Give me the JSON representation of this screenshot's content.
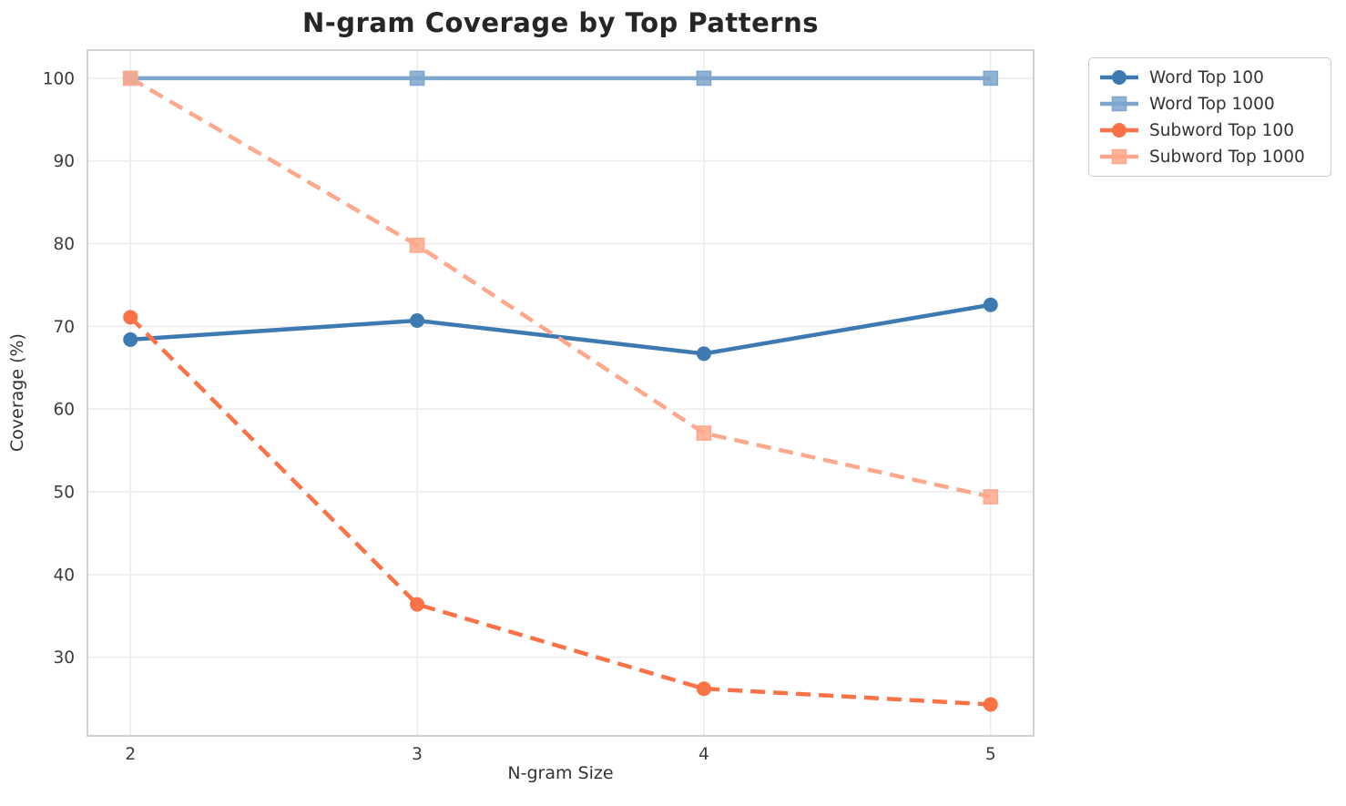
{
  "title": "N-gram Coverage by Top Patterns",
  "colors": {
    "word_top_100": "#3d7ab1",
    "word_top_1000": "#7ea6cc",
    "subword_top_100": "#fb7246",
    "subword_top_1000": "#fda88b",
    "gridline": "#ececec",
    "spine": "#cccccc",
    "title_text": "#262626",
    "tick_text": "#3c3c3c",
    "label_text": "#333333"
  },
  "chart_data": {
    "type": "line",
    "title": "N-gram Coverage by Top Patterns",
    "xlabel": "N-gram Size",
    "ylabel": "Coverage (%)",
    "x": [
      2,
      3,
      4,
      5
    ],
    "xtick_labels": [
      "2",
      "3",
      "4",
      "5"
    ],
    "ytick_values": [
      30,
      40,
      50,
      60,
      70,
      80,
      90,
      100
    ],
    "ytick_labels": [
      "30",
      "40",
      "50",
      "60",
      "70",
      "80",
      "90",
      "100"
    ],
    "xlim": [
      1.85,
      5.15
    ],
    "ylim": [
      20.5,
      103.4
    ],
    "grid": true,
    "legend_position": "outside-upper-right",
    "series": [
      {
        "name": "Word Top 100",
        "color": "#3d7ab1",
        "marker": "circle",
        "line_style": "solid",
        "values": [
          68.4,
          70.7,
          66.7,
          72.6
        ]
      },
      {
        "name": "Word Top 1000",
        "color": "#7ea6cc",
        "marker": "square",
        "line_style": "solid",
        "values": [
          100,
          100,
          100,
          100
        ]
      },
      {
        "name": "Subword Top 100",
        "color": "#fb7246",
        "marker": "circle",
        "line_style": "dashed",
        "values": [
          71.1,
          36.4,
          26.2,
          24.3
        ]
      },
      {
        "name": "Subword Top 1000",
        "color": "#fda88b",
        "marker": "square",
        "line_style": "dashed",
        "values": [
          100,
          79.8,
          57.1,
          49.4
        ]
      }
    ]
  }
}
